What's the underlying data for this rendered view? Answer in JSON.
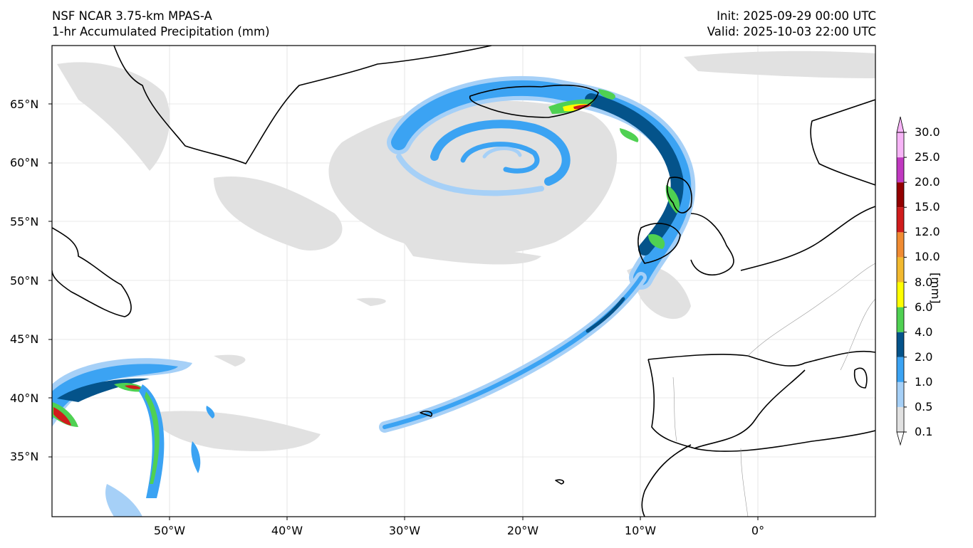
{
  "header": {
    "model": "NSF NCAR 3.75-km MPAS-A",
    "field": "1-hr Accumulated Precipitation (mm)",
    "init": "Init: 2025-09-29 00:00 UTC",
    "valid": "Valid: 2025-10-03 22:00 UTC"
  },
  "axes": {
    "lat_labels": [
      "65°N",
      "60°N",
      "55°N",
      "50°N",
      "45°N",
      "40°N",
      "35°N"
    ],
    "lon_labels": [
      "50°W",
      "40°W",
      "30°W",
      "20°W",
      "10°W",
      "0°"
    ]
  },
  "colorbar": {
    "unit": "[mm]",
    "levels": [
      "0.1",
      "0.5",
      "1.0",
      "2.0",
      "4.0",
      "6.0",
      "8.0",
      "10.0",
      "12.0",
      "15.0",
      "20.0",
      "25.0",
      "30.0"
    ],
    "colors": [
      "#e1e1e1",
      "#a6d0f7",
      "#3ba3f3",
      "#04538a",
      "#4fd152",
      "#ffff00",
      "#f2b92f",
      "#f08b32",
      "#d01c1c",
      "#930000",
      "#c039c0",
      "#f7b4f7"
    ]
  }
}
